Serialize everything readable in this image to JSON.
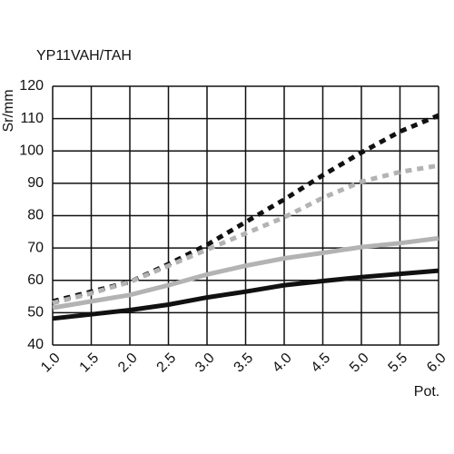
{
  "chart_data": {
    "type": "line",
    "title": "YP11VAH/TAH",
    "y_label": "Sr/mm",
    "x_label": "Pot.",
    "x": [
      1.0,
      1.5,
      2.0,
      2.5,
      3.0,
      3.5,
      4.0,
      4.5,
      5.0,
      5.5,
      6.0
    ],
    "series": [
      {
        "color": "#111111",
        "style": "solid",
        "values": [
          48.2,
          49.5,
          50.8,
          52.5,
          54.7,
          56.5,
          58.5,
          59.8,
          61,
          62,
          63
        ]
      },
      {
        "color": "#b3b3b3",
        "style": "solid",
        "values": [
          51.5,
          53.5,
          55.5,
          58.5,
          61.8,
          64.5,
          66.8,
          68.5,
          70.3,
          71.5,
          73
        ]
      },
      {
        "color": "#111111",
        "style": "dotted",
        "values": [
          53.5,
          56.5,
          59.5,
          65,
          71,
          78,
          85,
          92.5,
          99.5,
          106,
          111
        ]
      },
      {
        "color": "#b3b3b3",
        "style": "dotted",
        "values": [
          53,
          56,
          59.5,
          64.5,
          69.5,
          74.5,
          79.5,
          85.5,
          90.5,
          93.5,
          95.5
        ]
      }
    ],
    "xlim": [
      1,
      6
    ],
    "xticks": [
      {
        "value": 1,
        "label": "1.0"
      },
      {
        "value": 1.5,
        "label": "1.5"
      },
      {
        "value": 2,
        "label": "2.0"
      },
      {
        "value": 2.5,
        "label": "2.5"
      },
      {
        "value": 3,
        "label": "3.0"
      },
      {
        "value": 3.5,
        "label": "3.5"
      },
      {
        "value": 4,
        "label": "4.0"
      },
      {
        "value": 4.5,
        "label": "4.5"
      },
      {
        "value": 5,
        "label": "5.0"
      },
      {
        "value": 5.5,
        "label": "5.5"
      },
      {
        "value": 6,
        "label": "6.0"
      }
    ],
    "ylim": [
      40,
      120
    ],
    "yticks": [
      40,
      50,
      60,
      70,
      80,
      90,
      100,
      110,
      120
    ],
    "grid": true
  }
}
